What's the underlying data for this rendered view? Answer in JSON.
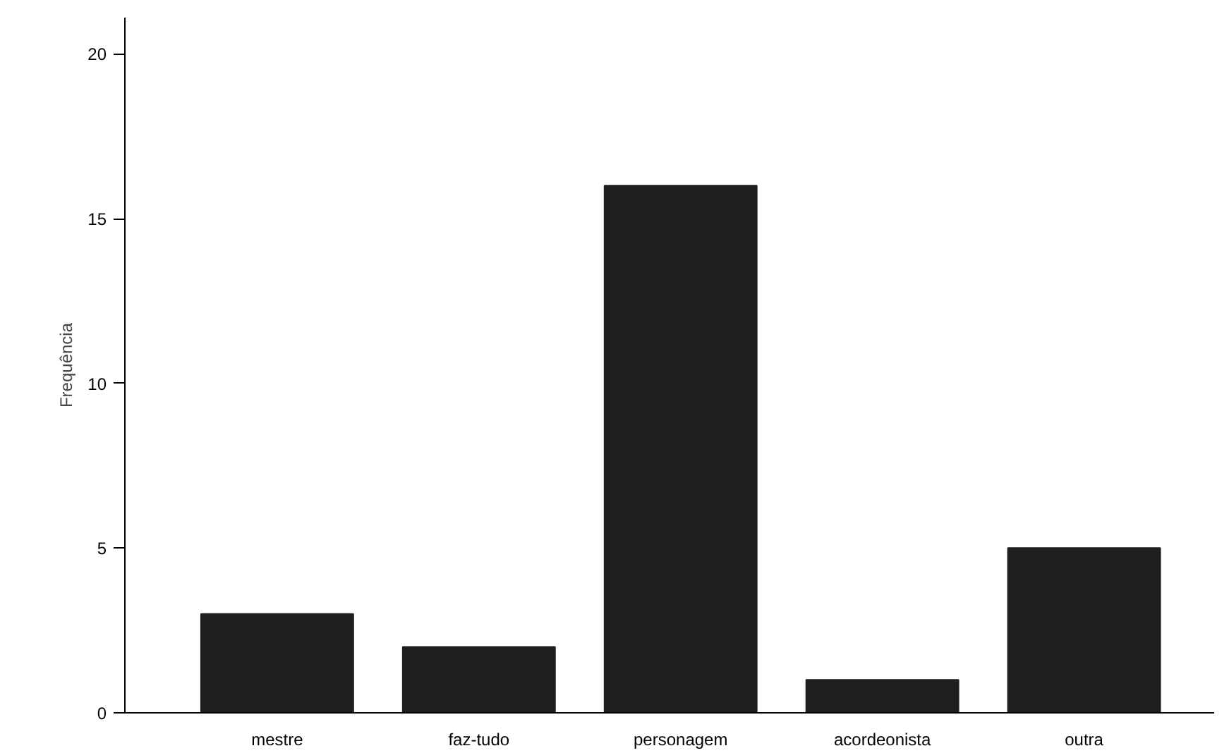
{
  "chart_data": {
    "type": "bar",
    "ylabel": "Frequência",
    "categories": [
      "mestre",
      "faz-tudo",
      "personagem",
      "acordeonista",
      "outra"
    ],
    "values": [
      3,
      2,
      16,
      1,
      5
    ],
    "color": "#1f1e1c",
    "ylim": [
      0,
      21.1
    ],
    "yticks": [
      0,
      5,
      10,
      15,
      20
    ],
    "grid": false
  }
}
